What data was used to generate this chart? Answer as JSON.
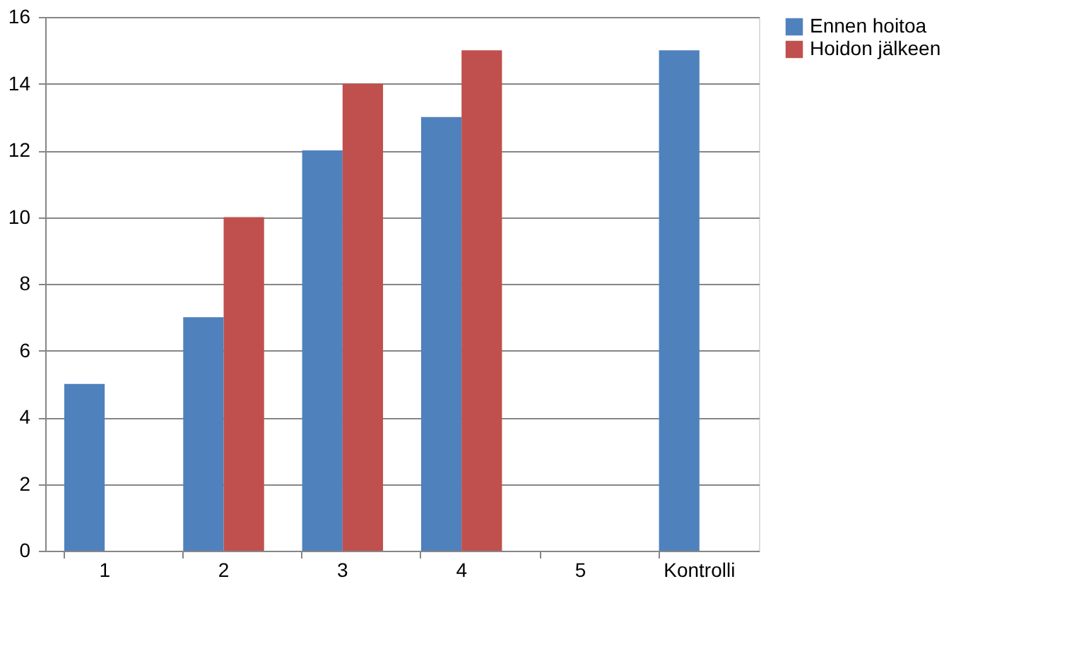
{
  "chart_data": {
    "type": "bar",
    "categories": [
      "1",
      "2",
      "3",
      "4",
      "5",
      "Kontrolli"
    ],
    "series": [
      {
        "name": "Ennen hoitoa",
        "color": "#4f81bd",
        "values": [
          5,
          7,
          12,
          13,
          null,
          15
        ]
      },
      {
        "name": "Hoidon jälkeen",
        "color": "#c0504d",
        "values": [
          null,
          10,
          14,
          15,
          null,
          null
        ]
      }
    ],
    "ylim": [
      0,
      16
    ],
    "yticks": [
      0,
      2,
      4,
      6,
      8,
      10,
      12,
      14,
      16
    ],
    "grid": "y",
    "legend": "right"
  }
}
